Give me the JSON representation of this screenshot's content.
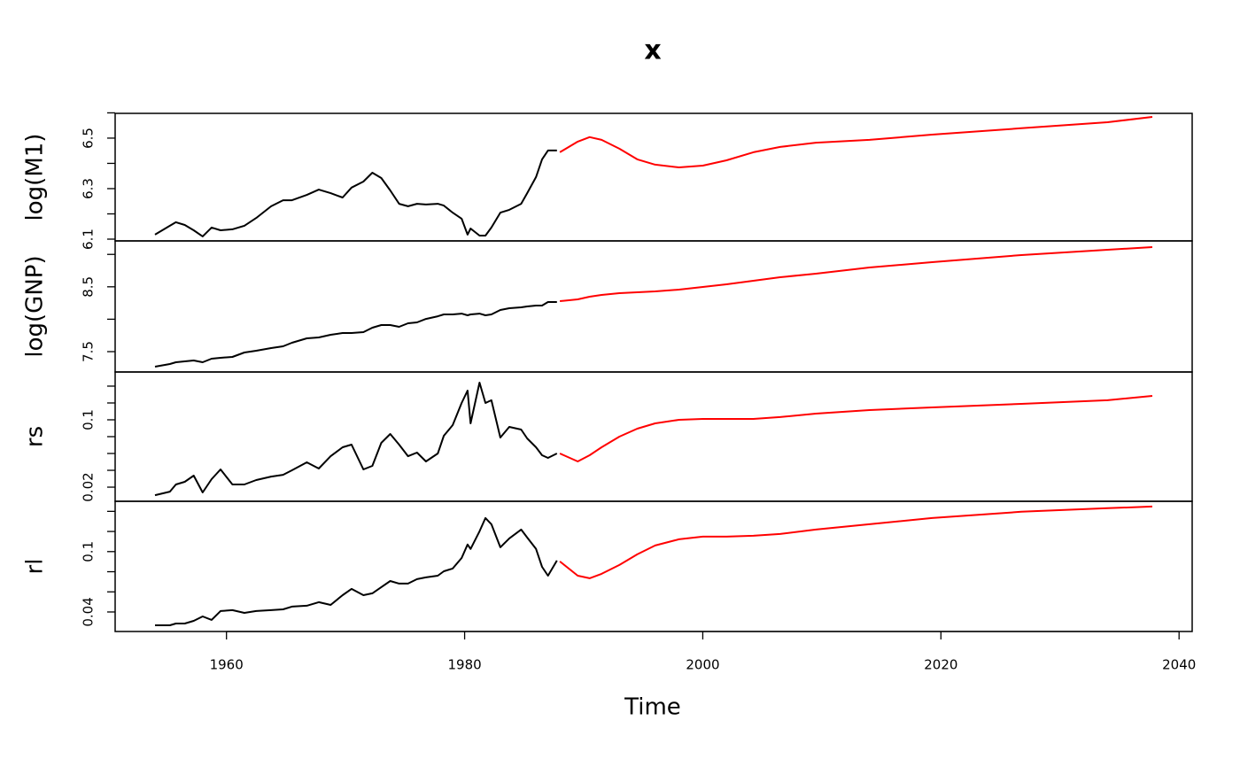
{
  "chart_data": [
    {
      "type": "line",
      "title": "x",
      "ylabel": "log(M1)",
      "xlim": [
        1950.65,
        2041.1
      ],
      "ylim": [
        6.093,
        6.598
      ],
      "yticks": [
        6.1,
        6.3,
        6.5
      ],
      "yminor_ticks": [
        6.2,
        6.4,
        6.6
      ],
      "series": [
        {
          "color": "#000000",
          "x": [
            1954,
            1955.25,
            1955.75,
            1956.5,
            1957.25,
            1958,
            1958.75,
            1959.5,
            1960.5,
            1961.5,
            1962.5,
            1963.75,
            1964.75,
            1965.5,
            1966.75,
            1967.75,
            1968.75,
            1969.75,
            1970.5,
            1971.5,
            1972.25,
            1973,
            1973.75,
            1974.5,
            1975.25,
            1976,
            1976.75,
            1977.75,
            1978.25,
            1979,
            1979.75,
            1980.25,
            1980.5,
            1981.25,
            1981.75,
            1982.25,
            1983,
            1983.75,
            1984.75,
            1985.25,
            1986,
            1986.5,
            1987,
            1987.75
          ],
          "values": [
            6.118,
            6.153,
            6.167,
            6.156,
            6.135,
            6.111,
            6.146,
            6.135,
            6.139,
            6.153,
            6.184,
            6.23,
            6.254,
            6.254,
            6.275,
            6.296,
            6.282,
            6.265,
            6.304,
            6.328,
            6.363,
            6.342,
            6.293,
            6.24,
            6.23,
            6.24,
            6.237,
            6.24,
            6.233,
            6.205,
            6.181,
            6.118,
            6.142,
            6.114,
            6.114,
            6.146,
            6.205,
            6.216,
            6.24,
            6.282,
            6.346,
            6.416,
            6.451,
            6.451
          ]
        },
        {
          "color": "#ff0000",
          "x": [
            1988,
            1989.5,
            1990.5,
            1991.5,
            1993,
            1994.5,
            1996,
            1998,
            2000,
            2002,
            2004.25,
            2006.5,
            2009.5,
            2014,
            2019.25,
            2026.75,
            2034,
            2037.75
          ],
          "values": [
            6.444,
            6.486,
            6.504,
            6.493,
            6.458,
            6.416,
            6.395,
            6.384,
            6.391,
            6.412,
            6.444,
            6.465,
            6.482,
            6.493,
            6.514,
            6.539,
            6.563,
            6.584
          ]
        }
      ]
    },
    {
      "type": "line",
      "ylabel": "log(GNP)",
      "xlim": [
        1950.65,
        2041.1
      ],
      "ylim": [
        7.186,
        9.208
      ],
      "yticks": [
        7.5,
        8.5
      ],
      "yminor_ticks": [
        8.0,
        9.0
      ],
      "series": [
        {
          "color": "#000000",
          "x": [
            1954,
            1955.25,
            1955.75,
            1956.5,
            1957.25,
            1958,
            1958.75,
            1959.5,
            1960.5,
            1961.5,
            1962.5,
            1963.75,
            1964.75,
            1965.5,
            1966.75,
            1967.75,
            1968.75,
            1969.75,
            1970.5,
            1971.5,
            1972.25,
            1973,
            1973.75,
            1974.5,
            1975.25,
            1976,
            1976.75,
            1977.75,
            1978.25,
            1979,
            1979.75,
            1980.25,
            1980.5,
            1981.25,
            1981.75,
            1982.25,
            1983,
            1983.75,
            1984.75,
            1985.25,
            1986,
            1986.5,
            1987,
            1987.75
          ],
          "values": [
            7.268,
            7.309,
            7.336,
            7.35,
            7.363,
            7.336,
            7.391,
            7.404,
            7.418,
            7.486,
            7.514,
            7.555,
            7.582,
            7.637,
            7.705,
            7.719,
            7.76,
            7.787,
            7.787,
            7.801,
            7.869,
            7.91,
            7.91,
            7.883,
            7.937,
            7.951,
            8.005,
            8.046,
            8.074,
            8.074,
            8.087,
            8.06,
            8.074,
            8.087,
            8.06,
            8.074,
            8.142,
            8.169,
            8.183,
            8.197,
            8.21,
            8.21,
            8.265,
            8.265
          ]
        },
        {
          "color": "#ff0000",
          "x": [
            1988,
            1989.5,
            1990.5,
            1991.5,
            1993,
            1994.5,
            1996,
            1998,
            2000,
            2002,
            2004.25,
            2006.5,
            2009.5,
            2014,
            2019.25,
            2026.75,
            2034,
            2037.75
          ],
          "values": [
            8.279,
            8.306,
            8.347,
            8.374,
            8.402,
            8.415,
            8.429,
            8.456,
            8.497,
            8.538,
            8.593,
            8.648,
            8.702,
            8.798,
            8.88,
            8.989,
            9.071,
            9.112
          ]
        }
      ]
    },
    {
      "type": "line",
      "ylabel": "rs",
      "xlim": [
        1950.65,
        2041.1
      ],
      "ylim": [
        0.0032,
        0.1568
      ],
      "yticks": [
        0.02,
        0.1
      ],
      "yminor_ticks": [
        0.04,
        0.06,
        0.08,
        0.12,
        0.14
      ],
      "series": [
        {
          "color": "#000000",
          "x": [
            1954,
            1955.25,
            1955.75,
            1956.5,
            1957.25,
            1958,
            1958.75,
            1959.5,
            1960.5,
            1961.5,
            1962.5,
            1963.75,
            1964.75,
            1965.5,
            1966.75,
            1967.75,
            1968.75,
            1969.75,
            1970.5,
            1971.5,
            1972.25,
            1973,
            1973.75,
            1974.5,
            1975.25,
            1976,
            1976.75,
            1977.75,
            1978.25,
            1979,
            1979.75,
            1980.25,
            1980.5,
            1981.25,
            1981.75,
            1982.25,
            1983,
            1983.75,
            1984.75,
            1985.25,
            1986,
            1986.5,
            1987,
            1987.75
          ],
          "values": [
            0.0105,
            0.0147,
            0.0232,
            0.0263,
            0.0337,
            0.0137,
            0.0295,
            0.0411,
            0.0232,
            0.0232,
            0.0284,
            0.0326,
            0.0347,
            0.04,
            0.0495,
            0.0421,
            0.0568,
            0.0674,
            0.0705,
            0.0411,
            0.0453,
            0.0726,
            0.0832,
            0.0705,
            0.0568,
            0.0611,
            0.0505,
            0.06,
            0.0811,
            0.0937,
            0.12,
            0.1347,
            0.0958,
            0.1442,
            0.12,
            0.1232,
            0.0789,
            0.0916,
            0.0884,
            0.0779,
            0.0674,
            0.0579,
            0.0547,
            0.06
          ]
        },
        {
          "color": "#ff0000",
          "x": [
            1988,
            1989.5,
            1990.5,
            1991.5,
            1993,
            1994.5,
            1996,
            1998,
            2000,
            2002,
            2004.25,
            2006.5,
            2009.5,
            2014,
            2019.25,
            2026.75,
            2034,
            2037.75
          ],
          "values": [
            0.06,
            0.0505,
            0.0579,
            0.0674,
            0.08,
            0.0895,
            0.0958,
            0.1,
            0.101,
            0.101,
            0.101,
            0.1032,
            0.1074,
            0.1116,
            0.1147,
            0.1189,
            0.1232,
            0.1284
          ]
        }
      ]
    },
    {
      "type": "line",
      "ylabel": "rl",
      "xlabel": "Time",
      "xlim": [
        1950.65,
        2041.1
      ],
      "xticks": [
        1960,
        1980,
        2000,
        2020,
        2040
      ],
      "ylim": [
        0.0206,
        0.15
      ],
      "yticks": [
        0.04,
        0.1
      ],
      "yminor_ticks": [
        0.06,
        0.08,
        0.12,
        0.14
      ],
      "series": [
        {
          "color": "#000000",
          "x": [
            1954,
            1955.25,
            1955.75,
            1956.5,
            1957.25,
            1958,
            1958.75,
            1959.5,
            1960.5,
            1961.5,
            1962.5,
            1963.75,
            1964.75,
            1965.5,
            1966.75,
            1967.75,
            1968.75,
            1969.75,
            1970.5,
            1971.5,
            1972.25,
            1973,
            1973.75,
            1974.5,
            1975.25,
            1976,
            1976.75,
            1977.75,
            1978.25,
            1979,
            1979.75,
            1980.25,
            1980.5,
            1981.25,
            1981.75,
            1982.25,
            1983,
            1983.75,
            1984.75,
            1985.25,
            1986,
            1986.5,
            1987,
            1987.75
          ],
          "values": [
            0.0268,
            0.0268,
            0.0285,
            0.0285,
            0.0312,
            0.0356,
            0.0321,
            0.0409,
            0.0418,
            0.0391,
            0.0409,
            0.0418,
            0.0426,
            0.0453,
            0.0462,
            0.0497,
            0.047,
            0.0567,
            0.0629,
            0.0567,
            0.0585,
            0.0647,
            0.0708,
            0.0682,
            0.0682,
            0.0726,
            0.0744,
            0.0761,
            0.0805,
            0.0832,
            0.0937,
            0.107,
            0.1026,
            0.1202,
            0.1334,
            0.1272,
            0.1043,
            0.1131,
            0.1219,
            0.114,
            0.1026,
            0.0849,
            0.0761,
            0.0911
          ]
        },
        {
          "color": "#ff0000",
          "x": [
            1988,
            1989.5,
            1990.5,
            1991.5,
            1993,
            1994.5,
            1996,
            1998,
            2000,
            2002,
            2004.25,
            2006.5,
            2009.5,
            2014,
            2019.25,
            2026.75,
            2034,
            2037.75
          ],
          "values": [
            0.0902,
            0.0761,
            0.0735,
            0.0779,
            0.0867,
            0.0973,
            0.1061,
            0.1122,
            0.1149,
            0.1149,
            0.1158,
            0.1175,
            0.1219,
            0.1272,
            0.1334,
            0.1396,
            0.1431,
            0.1448
          ]
        }
      ]
    }
  ]
}
